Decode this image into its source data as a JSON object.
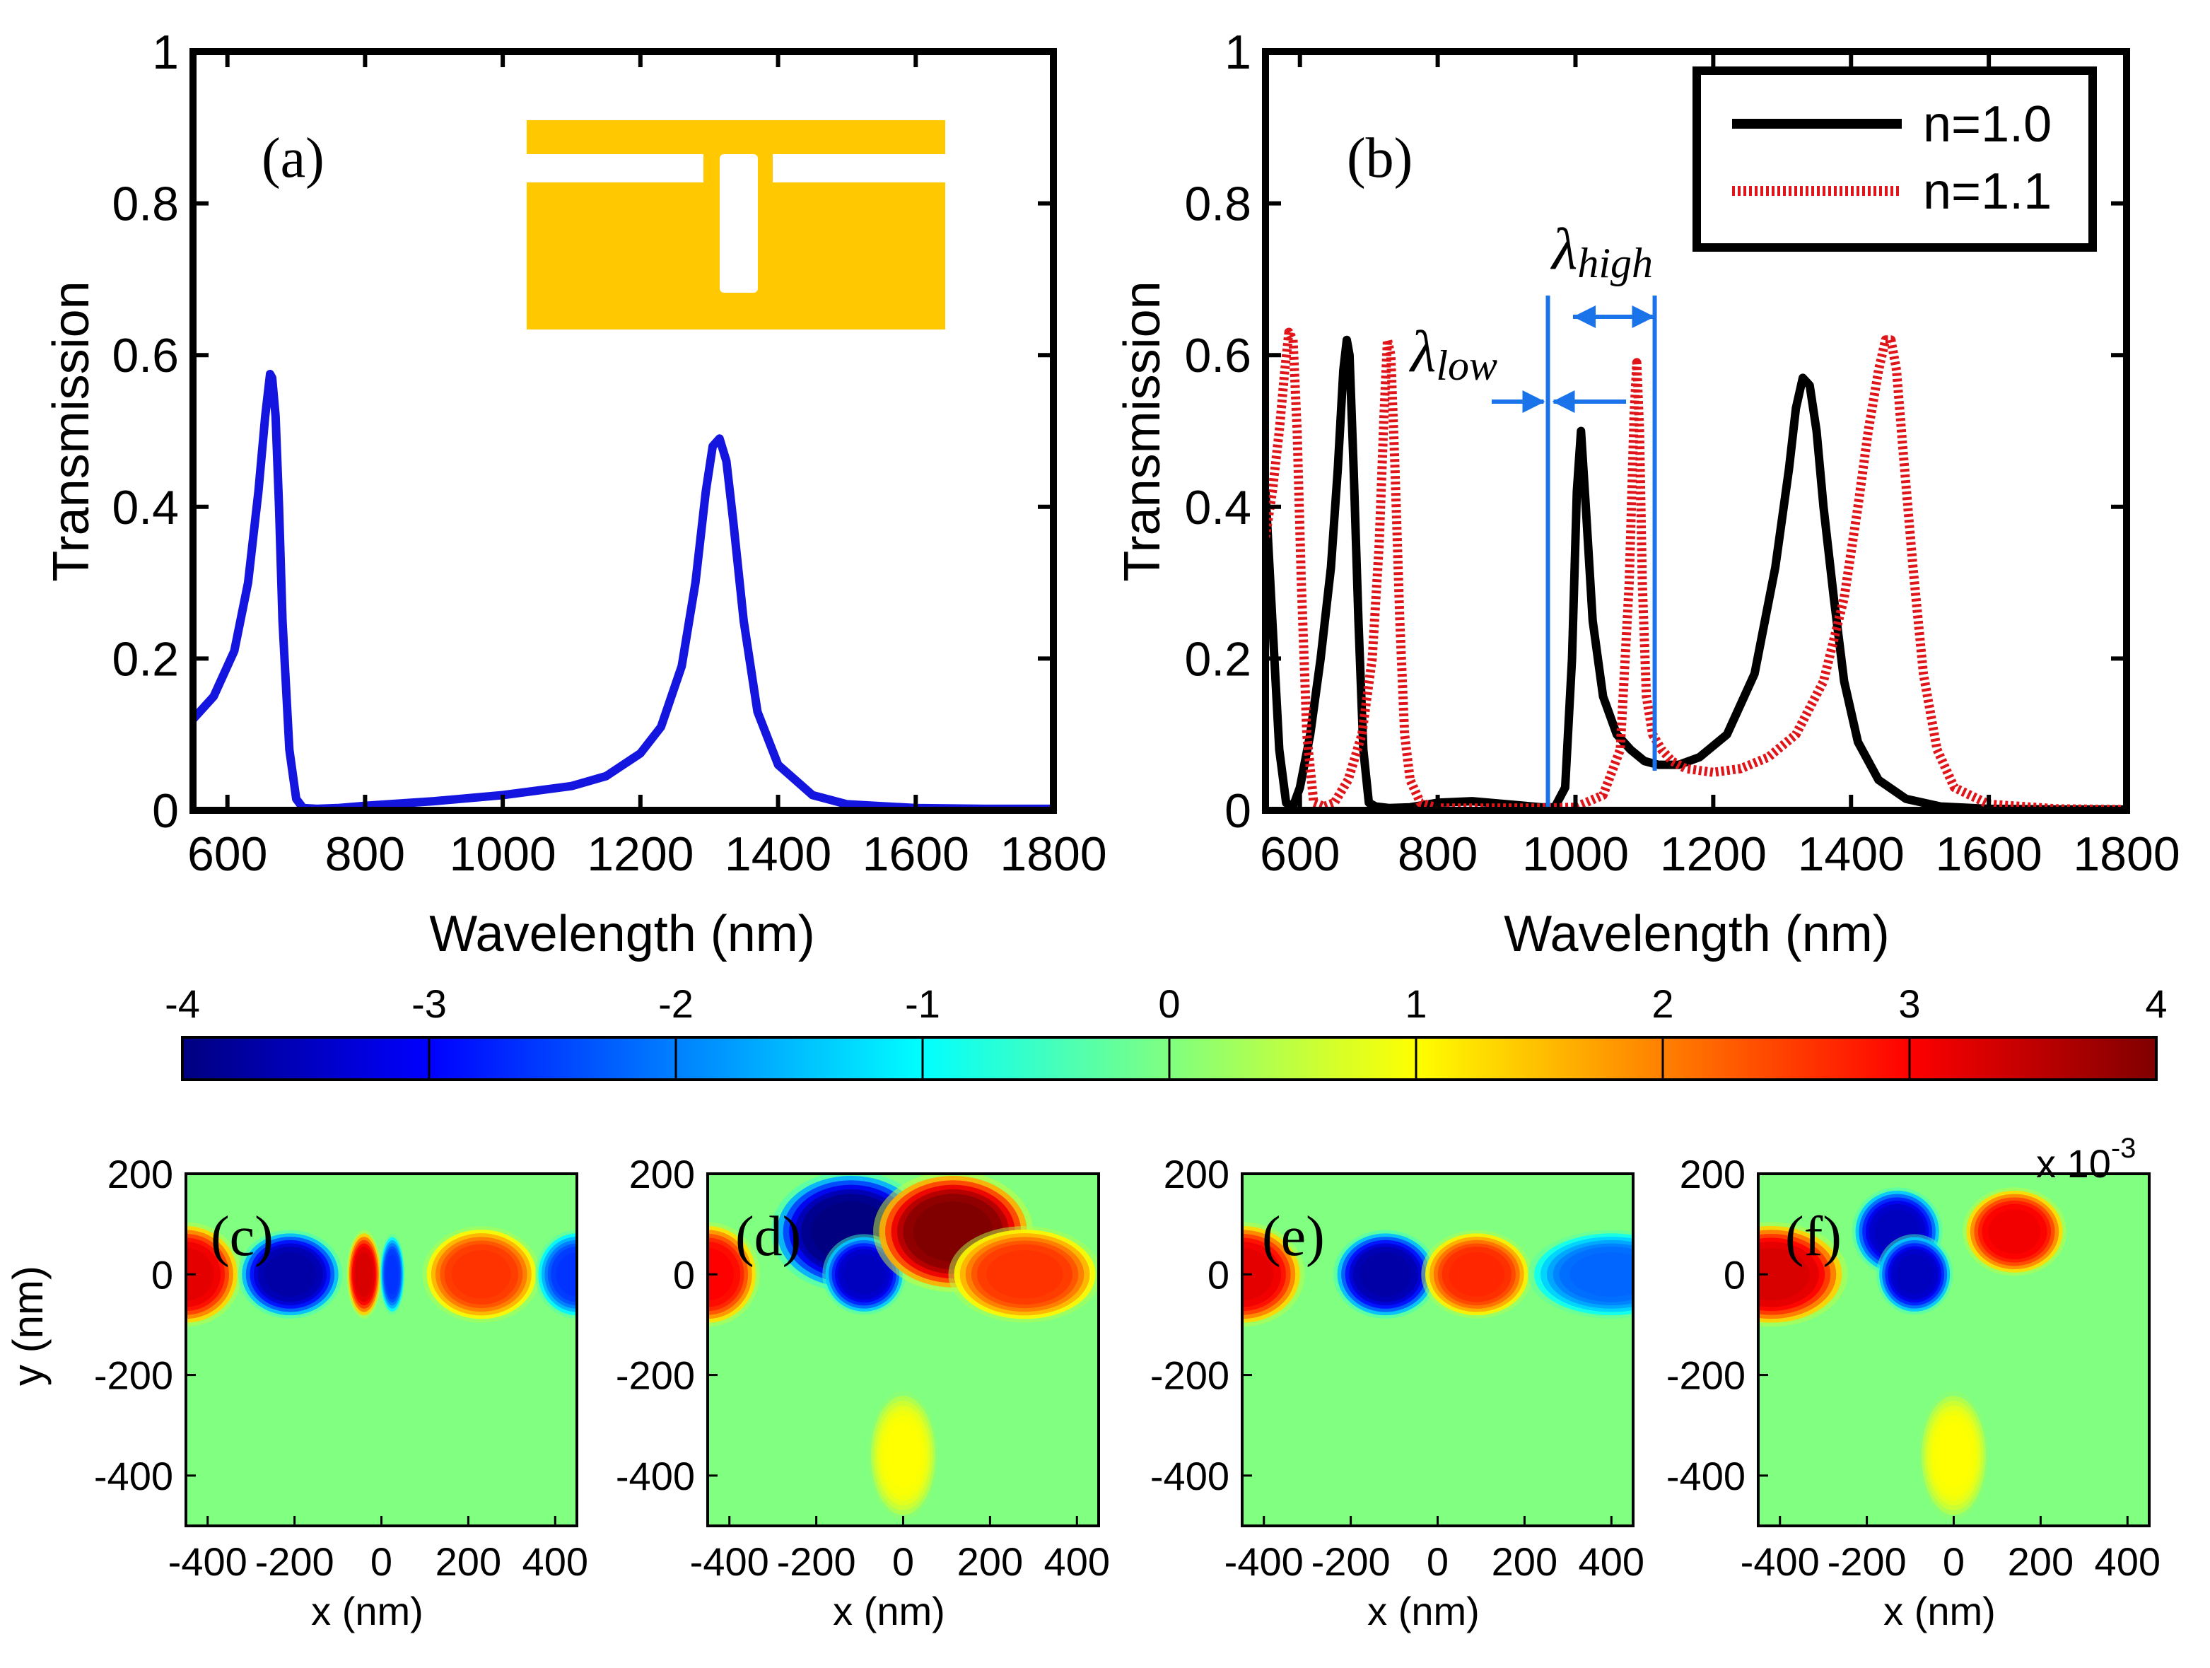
{
  "chart_data": [
    {
      "panel": "(a)",
      "type": "line",
      "xlabel": "Wavelength (nm)",
      "ylabel": "Transmission",
      "xlim": [
        550,
        1800
      ],
      "ylim": [
        0,
        1
      ],
      "xticks": [
        600,
        800,
        1000,
        1200,
        1400,
        1600,
        1800
      ],
      "xtick_labels": [
        "600",
        "800",
        "1000",
        "1200",
        "1400",
        "1600",
        "1800"
      ],
      "yticks": [
        0,
        0.2,
        0.4,
        0.6,
        0.8,
        1
      ],
      "ytick_labels": [
        "0",
        "0.2",
        "0.4",
        "0.6",
        "0.8",
        "1"
      ],
      "inset": "gold-nanostructure-schematic",
      "series": [
        {
          "name": "transmission",
          "color": "#1515e0",
          "x": [
            550,
            580,
            610,
            630,
            645,
            655,
            662,
            665,
            670,
            675,
            680,
            690,
            700,
            710,
            730,
            760,
            800,
            900,
            1000,
            1100,
            1150,
            1200,
            1230,
            1260,
            1280,
            1295,
            1305,
            1315,
            1325,
            1335,
            1350,
            1370,
            1400,
            1450,
            1500,
            1600,
            1700,
            1800
          ],
          "values": [
            0.12,
            0.15,
            0.21,
            0.3,
            0.42,
            0.52,
            0.575,
            0.57,
            0.52,
            0.4,
            0.25,
            0.08,
            0.015,
            0.003,
            0.002,
            0.003,
            0.006,
            0.012,
            0.02,
            0.032,
            0.045,
            0.075,
            0.11,
            0.19,
            0.3,
            0.42,
            0.48,
            0.49,
            0.46,
            0.38,
            0.25,
            0.13,
            0.06,
            0.02,
            0.008,
            0.003,
            0.002,
            0.002
          ]
        }
      ]
    },
    {
      "panel": "(b)",
      "type": "line",
      "xlabel": "Wavelength (nm)",
      "ylabel": "Transmission",
      "xlim": [
        550,
        1800
      ],
      "ylim": [
        0,
        1
      ],
      "xticks": [
        600,
        800,
        1000,
        1200,
        1400,
        1600,
        1800
      ],
      "xtick_labels": [
        "600",
        "800",
        "1000",
        "1200",
        "1400",
        "1600",
        "1800"
      ],
      "yticks": [
        0,
        0.2,
        0.4,
        0.6,
        0.8,
        1
      ],
      "ytick_labels": [
        "0",
        "0.2",
        "0.4",
        "0.6",
        "0.8",
        "1"
      ],
      "legend": "top-right",
      "annotations": {
        "lambda_low": "λ",
        "lambda_low_sub": "low",
        "lambda_high": "λ",
        "lambda_high_sub": "high",
        "line_low_x": 960,
        "line_high_x": 1115
      },
      "series": [
        {
          "name": "n=1.0",
          "color": "#000000",
          "style": "solid",
          "x": [
            550,
            560,
            570,
            580,
            590,
            600,
            615,
            630,
            645,
            655,
            663,
            668,
            672,
            678,
            685,
            692,
            700,
            710,
            730,
            760,
            800,
            850,
            900,
            950,
            970,
            985,
            995,
            1002,
            1008,
            1015,
            1025,
            1040,
            1060,
            1080,
            1100,
            1120,
            1150,
            1180,
            1220,
            1260,
            1290,
            1310,
            1320,
            1330,
            1340,
            1350,
            1360,
            1375,
            1390,
            1410,
            1440,
            1480,
            1530,
            1600,
            1700,
            1800
          ],
          "values": [
            0.42,
            0.25,
            0.08,
            0.01,
            0.005,
            0.03,
            0.1,
            0.2,
            0.32,
            0.45,
            0.58,
            0.62,
            0.6,
            0.45,
            0.25,
            0.08,
            0.01,
            0.005,
            0.003,
            0.004,
            0.01,
            0.012,
            0.008,
            0.004,
            0.004,
            0.03,
            0.2,
            0.42,
            0.5,
            0.4,
            0.25,
            0.15,
            0.1,
            0.08,
            0.065,
            0.06,
            0.06,
            0.07,
            0.1,
            0.18,
            0.32,
            0.45,
            0.53,
            0.57,
            0.56,
            0.5,
            0.4,
            0.28,
            0.17,
            0.09,
            0.04,
            0.015,
            0.005,
            0.002,
            0.001,
            0.001
          ]
        },
        {
          "name": "n=1.1",
          "color": "#e0151a",
          "style": "dotted",
          "x": [
            550,
            560,
            570,
            578,
            584,
            590,
            596,
            602,
            610,
            620,
            635,
            650,
            670,
            690,
            705,
            715,
            722,
            727,
            732,
            738,
            745,
            752,
            760,
            775,
            800,
            850,
            900,
            950,
            1000,
            1040,
            1065,
            1078,
            1085,
            1089,
            1093,
            1097,
            1103,
            1112,
            1125,
            1140,
            1160,
            1200,
            1240,
            1280,
            1320,
            1360,
            1390,
            1410,
            1425,
            1440,
            1450,
            1458,
            1466,
            1475,
            1490,
            1505,
            1525,
            1550,
            1600,
            1700,
            1800
          ],
          "values": [
            0.36,
            0.42,
            0.5,
            0.58,
            0.63,
            0.62,
            0.5,
            0.3,
            0.1,
            0.01,
            0.005,
            0.01,
            0.04,
            0.1,
            0.2,
            0.35,
            0.52,
            0.62,
            0.6,
            0.45,
            0.25,
            0.1,
            0.04,
            0.01,
            0.003,
            0.003,
            0.003,
            0.003,
            0.004,
            0.02,
            0.08,
            0.3,
            0.52,
            0.59,
            0.5,
            0.3,
            0.15,
            0.1,
            0.08,
            0.065,
            0.055,
            0.05,
            0.055,
            0.07,
            0.1,
            0.17,
            0.28,
            0.4,
            0.5,
            0.58,
            0.62,
            0.62,
            0.58,
            0.48,
            0.32,
            0.18,
            0.08,
            0.03,
            0.008,
            0.002,
            0.001
          ]
        }
      ]
    },
    {
      "type": "colorbar",
      "range": [
        -4,
        4
      ],
      "ticks": [
        -4,
        -3,
        -2,
        -1,
        0,
        1,
        2,
        3,
        4
      ],
      "tick_labels": [
        "-4",
        "-3",
        "-2",
        "-1",
        "0",
        "1",
        "2",
        "3",
        "4"
      ],
      "colormap": "jet",
      "scale_label": "x 10",
      "scale_exponent": "-3"
    },
    {
      "type": "heatmap",
      "panels": [
        "(c)",
        "(d)",
        "(e)",
        "(f)"
      ],
      "xlabel": "x (nm)",
      "ylabel": "y (nm)",
      "xlim": [
        -450,
        450
      ],
      "ylim": [
        -500,
        200
      ],
      "xticks": [
        -400,
        -200,
        0,
        200,
        400
      ],
      "xtick_labels": [
        "-400",
        "-200",
        "0",
        "200",
        "400"
      ],
      "yticks": [
        200,
        0,
        -200,
        -400
      ],
      "ytick_labels": [
        "200",
        "0",
        "-200",
        "-400"
      ],
      "background_value": 0,
      "blobs": [
        [
          {
            "x": -450,
            "y": 0,
            "rx": 80,
            "ry": 65,
            "v": 3.2
          },
          {
            "x": -210,
            "y": 0,
            "rx": 75,
            "ry": 55,
            "v": -3.7
          },
          {
            "x": -40,
            "y": 0,
            "rx": 25,
            "ry": 55,
            "v": 3.3
          },
          {
            "x": 25,
            "y": 0,
            "rx": 18,
            "ry": 50,
            "v": -2.6
          },
          {
            "x": 230,
            "y": 0,
            "rx": 85,
            "ry": 60,
            "v": 2.6
          },
          {
            "x": 450,
            "y": 0,
            "rx": 60,
            "ry": 55,
            "v": -2.6
          }
        ],
        [
          {
            "x": -450,
            "y": 0,
            "rx": 75,
            "ry": 65,
            "v": 3.0
          },
          {
            "x": -120,
            "y": 85,
            "rx": 115,
            "ry": 75,
            "v": -4.0
          },
          {
            "x": -90,
            "y": 0,
            "rx": 60,
            "ry": 50,
            "v": -3.5
          },
          {
            "x": 115,
            "y": 85,
            "rx": 115,
            "ry": 75,
            "v": 4.0
          },
          {
            "x": 280,
            "y": 0,
            "rx": 110,
            "ry": 60,
            "v": 2.6
          },
          {
            "x": 0,
            "y": -360,
            "rx": 50,
            "ry": 80,
            "v": 1.0
          }
        ],
        [
          {
            "x": -450,
            "y": 0,
            "rx": 90,
            "ry": 65,
            "v": 3.2
          },
          {
            "x": -120,
            "y": 0,
            "rx": 75,
            "ry": 55,
            "v": -3.7
          },
          {
            "x": 90,
            "y": 0,
            "rx": 80,
            "ry": 55,
            "v": 2.7
          },
          {
            "x": 400,
            "y": 0,
            "rx": 120,
            "ry": 55,
            "v": -2.2
          }
        ],
        [
          {
            "x": -420,
            "y": 0,
            "rx": 110,
            "ry": 65,
            "v": 3.3
          },
          {
            "x": -130,
            "y": 85,
            "rx": 65,
            "ry": 55,
            "v": -3.5
          },
          {
            "x": -90,
            "y": 0,
            "rx": 55,
            "ry": 50,
            "v": -3.5
          },
          {
            "x": 140,
            "y": 85,
            "rx": 75,
            "ry": 55,
            "v": 3.1
          },
          {
            "x": 0,
            "y": -360,
            "rx": 50,
            "ry": 80,
            "v": 1.0
          }
        ]
      ]
    }
  ]
}
